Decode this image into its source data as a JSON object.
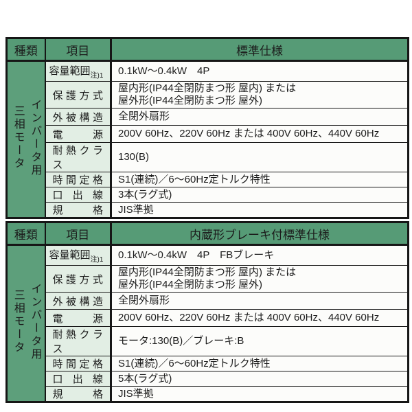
{
  "colors": {
    "header_green": "#569b76",
    "side_green": "#5d9f7b",
    "label_green": "#e2eee4",
    "value_bg": "#fcfcfa",
    "border": "#161616",
    "text": "#1c1c1c"
  },
  "tables": [
    {
      "header": {
        "type": "種類",
        "item": "項目",
        "spec": "標準仕様"
      },
      "side_label": "インバータ用\n三相モータ",
      "rows": [
        {
          "label": "容量範囲",
          "note": "注)1",
          "value": "0.1kW〜0.4kW　4P"
        },
        {
          "label": "保護方式",
          "value": "屋内形(IP44全閉防まつ形 屋内) または\n屋外形(IP44全閉防まつ形 屋外)"
        },
        {
          "label": "外被構造",
          "value": "全閉外扇形"
        },
        {
          "label": "電源",
          "value": "200V 60Hz、220V 60Hz または 400V 60Hz、440V 60Hz"
        },
        {
          "label": "耐熱クラス",
          "value": "130(B)"
        },
        {
          "label": "時間定格",
          "value": "S1(連続)／6〜60Hz定トルク特性"
        },
        {
          "label": "口出線",
          "value": "3本(ラグ式)"
        },
        {
          "label": "規格",
          "value": "JIS準拠"
        }
      ]
    },
    {
      "header": {
        "type": "種類",
        "item": "項目",
        "spec": "内蔵形ブレーキ付標準仕様"
      },
      "side_label": "インバータ用\n三相モータ",
      "rows": [
        {
          "label": "容量範囲",
          "note": "注)1",
          "value": "0.1kW〜0.4kW　4P　FBブレーキ"
        },
        {
          "label": "保護方式",
          "value": "屋内形(IP44全閉防まつ形 屋内) または\n屋外形(IP44全閉防まつ形 屋外)"
        },
        {
          "label": "外被構造",
          "value": "全閉外扇形"
        },
        {
          "label": "電源",
          "value": "200V 60Hz、220V 60Hz または 400V 60Hz、440V 60Hz"
        },
        {
          "label": "耐熱クラス",
          "value": "モータ:130(B)／ブレーキ:B"
        },
        {
          "label": "時間定格",
          "value": "S1(連続)／6〜60Hz定トルク特性"
        },
        {
          "label": "口出線",
          "value": "5本(ラグ式)"
        },
        {
          "label": "規格",
          "value": "JIS準拠"
        }
      ]
    }
  ]
}
